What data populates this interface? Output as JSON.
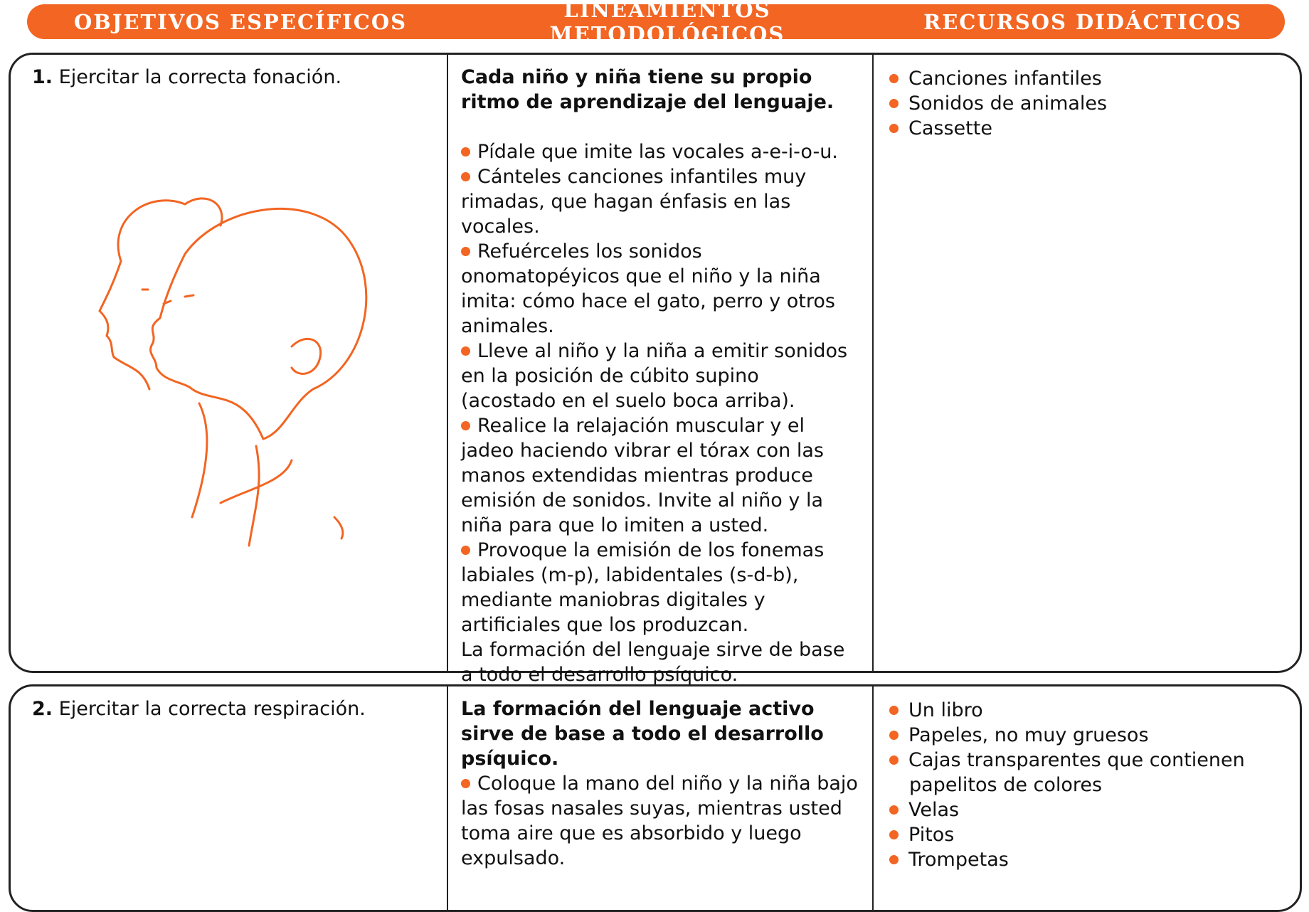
{
  "header": {
    "columns": [
      "OBJETIVOS ESPECÍFICOS",
      "LINEAMIENTOS METODOLÓGICOS",
      "RECURSOS DIDÁCTICOS"
    ]
  },
  "rows": [
    {
      "number": "1.",
      "objective": "Ejercitar la correcta fonación.",
      "methodology": {
        "title": "Cada niño y niña tiene su propio ritmo de aprendizaje del lenguaje.",
        "items": [
          "Pídale que imite las vocales a-e-i-o-u.",
          "Cánteles canciones infantiles muy rimadas, que hagan énfasis en las vocales.",
          "Refuérceles los sonidos onomatopéyicos que el niño y la niña imita: cómo hace el gato, perro y otros animales.",
          "Lleve al niño y la niña a emitir sonidos en la posición de cúbito supino (acostado en el suelo boca arriba).",
          "Realice la relajación muscular y el jadeo haciendo vibrar el tórax con las manos extendidas mientras produce emisión de sonidos. Invite al niño y la niña para que lo imiten a usted.",
          "Provoque la emisión de los fonemas labiales (m-p), labidentales (s-d-b), mediante maniobras digitales y artificiales que los produzcan."
        ],
        "note": "La formación del lenguaje sirve de base a todo el desarrollo psíquico."
      },
      "resources": [
        "Canciones infantiles",
        "Sonidos de animales",
        "Cassette"
      ]
    },
    {
      "number": "2.",
      "objective": "Ejercitar la correcta respiración.",
      "methodology": {
        "title": "La formación del lenguaje activo sirve de base a todo el desarrollo psíquico.",
        "items": [
          "Coloque la mano del niño y la niña bajo las fosas nasales suyas, mientras usted toma aire que es absorbido y luego expulsado."
        ]
      },
      "resources": [
        "Un libro",
        "Papeles, no muy gruesos",
        "Cajas transparentes que contienen papelitos de colores",
        "Velas",
        "Pitos",
        "Trompetas"
      ]
    }
  ]
}
